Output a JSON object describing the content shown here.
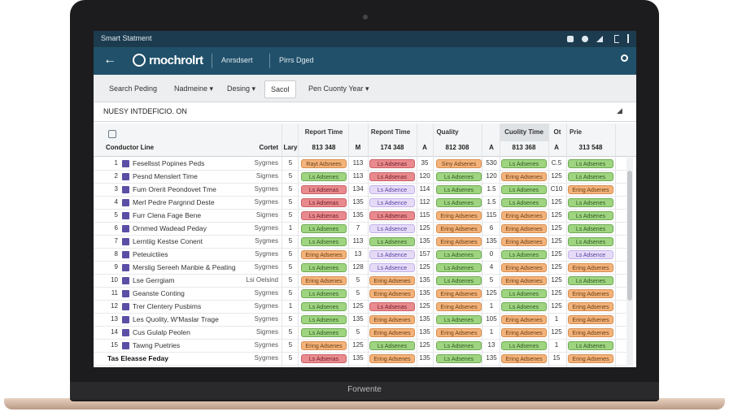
{
  "status_bar": {
    "title": "Smart Statment"
  },
  "app_bar": {
    "logo": "rnochrolrt",
    "tabs": [
      "Anrsdsert",
      "Pirrs Dged"
    ]
  },
  "toolbar": {
    "items": [
      "Search Peding",
      "Nadmeine ▾",
      "Desing ▾",
      "Sacol",
      "Pen Cuonty Year ▾"
    ],
    "selected": 3
  },
  "formula_bar": {
    "text": "NUESY INTDEFICIO. ON"
  },
  "table": {
    "group_headers": [
      "Report Time",
      "Repont Time",
      "Quality",
      "Cuolity Time",
      "Ot",
      "Prie"
    ],
    "headers": [
      "Conductor Line",
      "Cortet",
      "Lary",
      "813 348",
      "M",
      "174 348",
      "A",
      "812 308",
      "A",
      "813 368",
      "A",
      "313 548"
    ],
    "rows": [
      {
        "num": "1",
        "name": "Fesellsst Popines Peds",
        "cortet": "Sygrnes",
        "lary": "5",
        "cells": [
          [
            "Rayt Adsnees",
            "orange"
          ],
          "113",
          [
            "Ls Adsenas",
            "red"
          ],
          "35",
          [
            "Siny Adsenes",
            "orange"
          ],
          "530",
          [
            "Ls Adsenes",
            "green"
          ],
          "C.5",
          [
            "Ls Adsenes",
            "green"
          ]
        ]
      },
      {
        "num": "2",
        "name": "Pesnd Menslert Time",
        "cortet": "Sigrnes",
        "lary": "5",
        "cells": [
          [
            "Ls Adsenes",
            "green"
          ],
          "113",
          [
            "Ls Adsenas",
            "red"
          ],
          "120",
          [
            "Ls Adsenes",
            "green"
          ],
          "120",
          [
            "Ering Adsenes",
            "orange"
          ],
          "125",
          [
            "Ls Adsenes",
            "green"
          ]
        ]
      },
      {
        "num": "3",
        "name": "Fum Orerit Peondovet Tme",
        "cortet": "Sygrnes",
        "lary": "5",
        "cells": [
          [
            "Ls Adsenas",
            "red"
          ],
          "134",
          [
            "Ls Adsence",
            "purple"
          ],
          "114",
          [
            "Ls Adsenes",
            "green"
          ],
          "1.5",
          [
            "Ls Adsenes",
            "green"
          ],
          "C10",
          [
            "Ering Adsenes",
            "orange"
          ]
        ]
      },
      {
        "num": "4",
        "name": "Merl Pedre Pargnnd Deste",
        "cortet": "Sygrnes",
        "lary": "5",
        "cells": [
          [
            "Ls Adsenas",
            "red"
          ],
          "135",
          [
            "Ls Adsence",
            "purple"
          ],
          "112",
          [
            "Ls Adsenes",
            "green"
          ],
          "1.5",
          [
            "Ls Adsenes",
            "green"
          ],
          "125",
          [
            "Ls Adsenes",
            "green"
          ]
        ]
      },
      {
        "num": "5",
        "name": "Furr Clena Fage Bene",
        "cortet": "Sigrnes",
        "lary": "5",
        "cells": [
          [
            "Ls Adsenas",
            "red"
          ],
          "135",
          [
            "Ls Adsenas",
            "red"
          ],
          "115",
          [
            "Ering Adsenes",
            "orange"
          ],
          "115",
          [
            "Ering Adsenes",
            "orange"
          ],
          "125",
          [
            "Ls Adsenes",
            "green"
          ]
        ]
      },
      {
        "num": "6",
        "name": "Ornmed Wadead Peday",
        "cortet": "Sygrnes",
        "lary": "1",
        "cells": [
          [
            "Ls Adsenes",
            "green"
          ],
          "7",
          [
            "Ls Adsence",
            "purple"
          ],
          "125",
          [
            "Ering Adsenes",
            "orange"
          ],
          "6",
          [
            "Ering Adsenes",
            "orange"
          ],
          "125",
          [
            "Ls Adsenes",
            "green"
          ]
        ]
      },
      {
        "num": "7",
        "name": "Lerntiig Kestse Conent",
        "cortet": "Sygmes",
        "lary": "5",
        "cells": [
          [
            "Ls Adsenes",
            "green"
          ],
          "113",
          [
            "Ls Adsenes",
            "green"
          ],
          "135",
          [
            "Ering Adsenes",
            "orange"
          ],
          "135",
          [
            "Ering Adsenes",
            "orange"
          ],
          "125",
          [
            "Ls Adsenes",
            "green"
          ]
        ]
      },
      {
        "num": "8",
        "name": "Peteuictiies",
        "cortet": "Sygmes",
        "lary": "5",
        "cells": [
          [
            "Ering Adsenes",
            "orange"
          ],
          "13",
          [
            "Ls Adsence",
            "purple"
          ],
          "157",
          [
            "Ls Adsenes",
            "green"
          ],
          "0",
          [
            "Ls Adsenes",
            "green"
          ],
          "125",
          [
            "Ls Adsence",
            "purple"
          ]
        ]
      },
      {
        "num": "9",
        "name": "Merslig Sereeh Manbie & Peating",
        "cortet": "Sygrnes",
        "lary": "5",
        "cells": [
          [
            "Ls Adsenes",
            "green"
          ],
          "128",
          [
            "Ls Adsence",
            "purple"
          ],
          "125",
          [
            "Ls Adsenes",
            "green"
          ],
          "4",
          [
            "Ering Adsenes",
            "orange"
          ],
          "125",
          [
            "Ering Adsenes",
            "orange"
          ]
        ]
      },
      {
        "num": "10",
        "name": "Lse Gerrgiam",
        "cortet": "Lsi Oelsind",
        "lary": "5",
        "cells": [
          [
            "Ering Adsenes",
            "orange"
          ],
          "5",
          [
            "Ering Adsenes",
            "orange"
          ],
          "135",
          [
            "Ls Adsenes",
            "green"
          ],
          "5",
          [
            "Ering Adsenes",
            "orange"
          ],
          "125",
          [
            "Ls Adsenes",
            "green"
          ]
        ]
      },
      {
        "num": "11",
        "name": "Geanste Conting",
        "cortet": "Sygrnes",
        "lary": "5",
        "cells": [
          [
            "Ls Adsenes",
            "green"
          ],
          "5",
          [
            "Ering Adsenes",
            "orange"
          ],
          "135",
          [
            "Ering Adsenes",
            "orange"
          ],
          "125",
          [
            "Ls Adsenes",
            "green"
          ],
          "125",
          [
            "Ering Adsenes",
            "orange"
          ]
        ]
      },
      {
        "num": "12",
        "name": "Trer Clentery Pusbims",
        "cortet": "Sygrnes",
        "lary": "1",
        "cells": [
          [
            "Ls Adsenes",
            "green"
          ],
          "125",
          [
            "Ls Adsenas",
            "red"
          ],
          "125",
          [
            "Ering Adsenes",
            "orange"
          ],
          "1",
          [
            "Ls Adsenes",
            "green"
          ],
          "125",
          [
            "Ering Adsenes",
            "orange"
          ]
        ]
      },
      {
        "num": "13",
        "name": "Les Quolity, W'Maslar Trage",
        "cortet": "Sygrnes",
        "lary": "5",
        "cells": [
          [
            "Ls Adsenes",
            "green"
          ],
          "135",
          [
            "Ering Adsenes",
            "orange"
          ],
          "135",
          [
            "Ls Adsenes",
            "green"
          ],
          "105",
          [
            "Ering Adsenes",
            "orange"
          ],
          "1",
          [
            "Ering Adsenes",
            "orange"
          ]
        ]
      },
      {
        "num": "14",
        "name": "Cus Gulalp Peolen",
        "cortet": "Sigrnes",
        "lary": "5",
        "cells": [
          [
            "Ls Adsenes",
            "green"
          ],
          "5",
          [
            "Ering Adsenes",
            "orange"
          ],
          "135",
          [
            "Ering Adsenes",
            "orange"
          ],
          "1",
          [
            "Ering Adsenes",
            "orange"
          ],
          "125",
          [
            "Ering Adsenes",
            "orange"
          ]
        ]
      },
      {
        "num": "15",
        "name": "Tawng Puetries",
        "cortet": "Sygrnes",
        "lary": "5",
        "cells": [
          [
            "Ering Adsenes",
            "orange"
          ],
          "125",
          [
            "Ls Adsenes",
            "green"
          ],
          "125",
          [
            "Ls Adsenes",
            "green"
          ],
          "13",
          [
            "Ls Adsenes",
            "green"
          ],
          "1",
          [
            "Ls Adsenes",
            "green"
          ]
        ]
      },
      {
        "name": "Tas Eleasse Feday",
        "bold": true,
        "cortet": "Sygrnes",
        "lary": "5",
        "cells": [
          [
            "Ls Adsenas",
            "red"
          ],
          "135",
          [
            "Ering Adsenes",
            "orange"
          ],
          "135",
          [
            "Ls Adsenes",
            "green"
          ],
          "135",
          [
            "Ering Adsenes",
            "orange"
          ],
          "15",
          [
            "Ering Adsenes",
            "orange"
          ]
        ]
      }
    ]
  },
  "laptop": {
    "brand": "Forwente"
  }
}
